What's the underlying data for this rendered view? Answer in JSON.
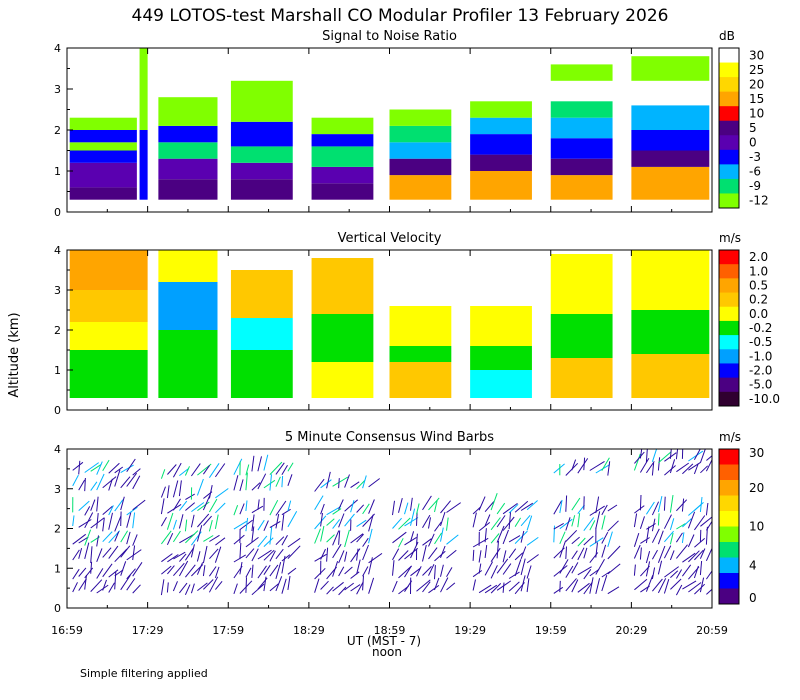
{
  "title": "449 LOTOS-test Marshall CO Modular Profiler 13 February 2026",
  "y_axis_label": "Altitude (km)",
  "x_axis_label": "UT  (MST - 7)",
  "noon_label": "noon",
  "footnote": "Simple filtering applied",
  "chart_data": [
    {
      "type": "heatmap",
      "title": "Signal to Noise Ratio",
      "colorbar_unit": "dB",
      "colorbar_labels": [
        "30",
        "25",
        "20",
        "15",
        "10",
        "5",
        "0",
        "-3",
        "-6",
        "-9",
        "-12"
      ],
      "colorbar_colors": [
        "#ffffff",
        "#ffff00",
        "#ffd700",
        "#ffa500",
        "#ff0000",
        "#4b0082",
        "#5a00b0",
        "#0000ff",
        "#00b4ff",
        "#00e070",
        "#80ff00"
      ],
      "x_ticks": [
        "16:59",
        "17:29",
        "17:59",
        "18:29",
        "18:59",
        "19:29",
        "19:59",
        "20:29",
        "20:59"
      ],
      "y_ticks": [
        "0",
        "1",
        "2",
        "3",
        "4"
      ],
      "ylim": [
        0,
        4
      ],
      "segments": [
        {
          "t0": "17:00",
          "t1": "17:25",
          "top_km": 2.3,
          "cells": [
            {
              "z0": 0.3,
              "z1": 0.6,
              "c": "#4b0082"
            },
            {
              "z0": 0.6,
              "z1": 1.2,
              "c": "#5a00b0"
            },
            {
              "z0": 1.2,
              "z1": 1.5,
              "c": "#0000ff"
            },
            {
              "z0": 1.5,
              "z1": 1.7,
              "c": "#80ff00"
            },
            {
              "z0": 1.7,
              "z1": 2.0,
              "c": "#0000ff"
            },
            {
              "z0": 2.0,
              "z1": 2.3,
              "c": "#80ff00"
            }
          ]
        },
        {
          "t0": "17:26",
          "t1": "17:29",
          "top_km": 4.0,
          "cells": [
            {
              "z0": 0.3,
              "z1": 2.0,
              "c": "#0000ff"
            },
            {
              "z0": 2.0,
              "z1": 4.0,
              "c": "#80ff00"
            }
          ]
        },
        {
          "t0": "17:33",
          "t1": "17:55",
          "top_km": 2.8,
          "cells": [
            {
              "z0": 0.3,
              "z1": 0.8,
              "c": "#4b0082"
            },
            {
              "z0": 0.8,
              "z1": 1.3,
              "c": "#5a00b0"
            },
            {
              "z0": 1.3,
              "z1": 1.7,
              "c": "#00e070"
            },
            {
              "z0": 1.7,
              "z1": 2.1,
              "c": "#0000ff"
            },
            {
              "z0": 2.1,
              "z1": 2.8,
              "c": "#80ff00"
            }
          ]
        },
        {
          "t0": "18:00",
          "t1": "18:23",
          "top_km": 3.2,
          "cells": [
            {
              "z0": 0.3,
              "z1": 0.8,
              "c": "#4b0082"
            },
            {
              "z0": 0.8,
              "z1": 1.2,
              "c": "#5a00b0"
            },
            {
              "z0": 1.2,
              "z1": 1.6,
              "c": "#00e070"
            },
            {
              "z0": 1.6,
              "z1": 2.2,
              "c": "#0000ff"
            },
            {
              "z0": 2.2,
              "z1": 3.2,
              "c": "#80ff00"
            }
          ]
        },
        {
          "t0": "18:30",
          "t1": "18:53",
          "top_km": 2.3,
          "cells": [
            {
              "z0": 0.3,
              "z1": 0.7,
              "c": "#4b0082"
            },
            {
              "z0": 0.7,
              "z1": 1.1,
              "c": "#5a00b0"
            },
            {
              "z0": 1.1,
              "z1": 1.6,
              "c": "#00e070"
            },
            {
              "z0": 1.6,
              "z1": 1.9,
              "c": "#0000ff"
            },
            {
              "z0": 1.9,
              "z1": 2.3,
              "c": "#80ff00"
            }
          ]
        },
        {
          "t0": "18:59",
          "t1": "19:22",
          "top_km": 2.5,
          "cells": [
            {
              "z0": 0.3,
              "z1": 0.9,
              "c": "#ffa500"
            },
            {
              "z0": 0.9,
              "z1": 1.3,
              "c": "#4b0082"
            },
            {
              "z0": 1.3,
              "z1": 1.7,
              "c": "#00b4ff"
            },
            {
              "z0": 1.7,
              "z1": 2.1,
              "c": "#00e070"
            },
            {
              "z0": 2.1,
              "z1": 2.5,
              "c": "#80ff00"
            }
          ]
        },
        {
          "t0": "19:29",
          "t1": "19:52",
          "top_km": 2.7,
          "cells": [
            {
              "z0": 0.3,
              "z1": 1.0,
              "c": "#ffa500"
            },
            {
              "z0": 1.0,
              "z1": 1.4,
              "c": "#4b0082"
            },
            {
              "z0": 1.4,
              "z1": 1.9,
              "c": "#0000ff"
            },
            {
              "z0": 1.9,
              "z1": 2.3,
              "c": "#00b4ff"
            },
            {
              "z0": 2.3,
              "z1": 2.7,
              "c": "#80ff00"
            }
          ]
        },
        {
          "t0": "19:59",
          "t1": "20:22",
          "top_km": 3.6,
          "cells": [
            {
              "z0": 0.3,
              "z1": 0.9,
              "c": "#ffa500"
            },
            {
              "z0": 0.9,
              "z1": 1.3,
              "c": "#4b0082"
            },
            {
              "z0": 1.3,
              "z1": 1.8,
              "c": "#0000ff"
            },
            {
              "z0": 1.8,
              "z1": 2.3,
              "c": "#00b4ff"
            },
            {
              "z0": 2.3,
              "z1": 2.7,
              "c": "#00e070"
            },
            {
              "z0": 3.2,
              "z1": 3.6,
              "c": "#80ff00"
            }
          ]
        },
        {
          "t0": "20:29",
          "t1": "20:58",
          "top_km": 3.8,
          "cells": [
            {
              "z0": 0.3,
              "z1": 1.1,
              "c": "#ffa500"
            },
            {
              "z0": 1.1,
              "z1": 1.5,
              "c": "#4b0082"
            },
            {
              "z0": 1.5,
              "z1": 2.0,
              "c": "#0000ff"
            },
            {
              "z0": 2.0,
              "z1": 2.6,
              "c": "#00b4ff"
            },
            {
              "z0": 3.2,
              "z1": 3.8,
              "c": "#80ff00"
            }
          ]
        }
      ]
    },
    {
      "type": "heatmap",
      "title": "Vertical Velocity",
      "colorbar_unit": "m/s",
      "colorbar_labels": [
        "2.0",
        "1.0",
        "0.5",
        "0.2",
        "0.0",
        "-0.2",
        "-0.5",
        "-1.0",
        "-2.0",
        "-5.0",
        "-10.0"
      ],
      "colorbar_colors": [
        "#ff0000",
        "#ff6000",
        "#ffa500",
        "#ffc800",
        "#ffff00",
        "#00e000",
        "#00ffff",
        "#00a0ff",
        "#0000ff",
        "#4b0082",
        "#300030"
      ],
      "x_ticks": [
        "16:59",
        "17:29",
        "17:59",
        "18:29",
        "18:59",
        "19:29",
        "19:59",
        "20:29",
        "20:59"
      ],
      "y_ticks": [
        "0",
        "1",
        "2",
        "3",
        "4"
      ],
      "ylim": [
        0,
        4
      ],
      "segments": [
        {
          "t0": "17:00",
          "t1": "17:29",
          "top_km": 4.0,
          "cells": [
            {
              "z0": 0.3,
              "z1": 1.5,
              "c": "#00e000"
            },
            {
              "z0": 1.5,
              "z1": 2.2,
              "c": "#ffff00"
            },
            {
              "z0": 2.2,
              "z1": 3.0,
              "c": "#ffc800"
            },
            {
              "z0": 3.0,
              "z1": 4.0,
              "c": "#ffa500"
            }
          ]
        },
        {
          "t0": "17:33",
          "t1": "17:55",
          "top_km": 4.0,
          "cells": [
            {
              "z0": 0.3,
              "z1": 2.0,
              "c": "#00e000"
            },
            {
              "z0": 2.0,
              "z1": 3.2,
              "c": "#00a0ff"
            },
            {
              "z0": 3.2,
              "z1": 4.0,
              "c": "#ffff00"
            }
          ]
        },
        {
          "t0": "18:00",
          "t1": "18:23",
          "top_km": 3.5,
          "cells": [
            {
              "z0": 0.3,
              "z1": 1.5,
              "c": "#00e000"
            },
            {
              "z0": 1.5,
              "z1": 2.3,
              "c": "#00ffff"
            },
            {
              "z0": 2.3,
              "z1": 3.5,
              "c": "#ffc800"
            }
          ]
        },
        {
          "t0": "18:30",
          "t1": "18:53",
          "top_km": 3.8,
          "cells": [
            {
              "z0": 0.3,
              "z1": 1.2,
              "c": "#ffff00"
            },
            {
              "z0": 1.2,
              "z1": 2.4,
              "c": "#00e000"
            },
            {
              "z0": 2.4,
              "z1": 3.8,
              "c": "#ffc800"
            }
          ]
        },
        {
          "t0": "18:59",
          "t1": "19:22",
          "top_km": 2.6,
          "cells": [
            {
              "z0": 0.3,
              "z1": 1.2,
              "c": "#ffc800"
            },
            {
              "z0": 1.2,
              "z1": 1.6,
              "c": "#00e000"
            },
            {
              "z0": 1.6,
              "z1": 2.6,
              "c": "#ffff00"
            }
          ]
        },
        {
          "t0": "19:29",
          "t1": "19:52",
          "top_km": 2.6,
          "cells": [
            {
              "z0": 0.3,
              "z1": 1.0,
              "c": "#00ffff"
            },
            {
              "z0": 1.0,
              "z1": 1.6,
              "c": "#00e000"
            },
            {
              "z0": 1.6,
              "z1": 2.6,
              "c": "#ffff00"
            }
          ]
        },
        {
          "t0": "19:59",
          "t1": "20:22",
          "top_km": 3.9,
          "cells": [
            {
              "z0": 0.3,
              "z1": 1.3,
              "c": "#ffc800"
            },
            {
              "z0": 1.3,
              "z1": 2.4,
              "c": "#00e000"
            },
            {
              "z0": 2.4,
              "z1": 3.9,
              "c": "#ffff00"
            }
          ]
        },
        {
          "t0": "20:29",
          "t1": "20:58",
          "top_km": 4.0,
          "cells": [
            {
              "z0": 0.3,
              "z1": 1.4,
              "c": "#ffc800"
            },
            {
              "z0": 1.4,
              "z1": 2.5,
              "c": "#00e000"
            },
            {
              "z0": 2.5,
              "z1": 4.0,
              "c": "#ffff00"
            }
          ]
        }
      ]
    },
    {
      "type": "scatter",
      "title": "5 Minute Consensus Wind Barbs",
      "colorbar_unit": "m/s",
      "colorbar_labels": [
        "30",
        "20",
        "10",
        "4",
        "0"
      ],
      "colorbar_colors": [
        "#ff0000",
        "#ff6000",
        "#ffa500",
        "#ffd700",
        "#ffff00",
        "#80ff00",
        "#00e070",
        "#00b4ff",
        "#0000ff",
        "#4b0082"
      ],
      "x_ticks": [
        "16:59",
        "17:29",
        "17:59",
        "18:29",
        "18:59",
        "19:29",
        "19:59",
        "20:29",
        "20:59"
      ],
      "y_ticks": [
        "0",
        "1",
        "2",
        "3",
        "4"
      ],
      "ylim": [
        0,
        4
      ],
      "barb_rows": [
        {
          "t0": "17:00",
          "t1": "17:25",
          "heights_km": [
            0.4,
            0.8,
            1.2,
            1.6,
            2.0,
            2.4,
            3.0,
            3.4
          ]
        },
        {
          "t0": "17:33",
          "t1": "17:55",
          "heights_km": [
            0.4,
            0.8,
            1.2,
            1.6,
            2.0,
            2.4,
            2.8,
            3.3
          ]
        },
        {
          "t0": "18:00",
          "t1": "18:23",
          "heights_km": [
            0.4,
            0.8,
            1.2,
            1.6,
            2.0,
            2.4,
            3.0,
            3.4
          ]
        },
        {
          "t0": "18:30",
          "t1": "18:53",
          "heights_km": [
            0.4,
            0.8,
            1.2,
            1.6,
            2.0,
            2.4,
            3.0
          ]
        },
        {
          "t0": "18:59",
          "t1": "19:22",
          "heights_km": [
            0.4,
            0.8,
            1.2,
            1.6,
            2.0,
            2.4
          ]
        },
        {
          "t0": "19:29",
          "t1": "19:52",
          "heights_km": [
            0.4,
            0.8,
            1.2,
            1.6,
            2.0,
            2.4
          ]
        },
        {
          "t0": "19:59",
          "t1": "20:22",
          "heights_km": [
            0.4,
            0.8,
            1.2,
            1.6,
            2.0,
            2.4,
            3.4
          ]
        },
        {
          "t0": "20:29",
          "t1": "20:58",
          "heights_km": [
            0.4,
            0.8,
            1.2,
            1.6,
            2.0,
            2.4,
            3.4,
            3.7
          ]
        }
      ]
    }
  ]
}
